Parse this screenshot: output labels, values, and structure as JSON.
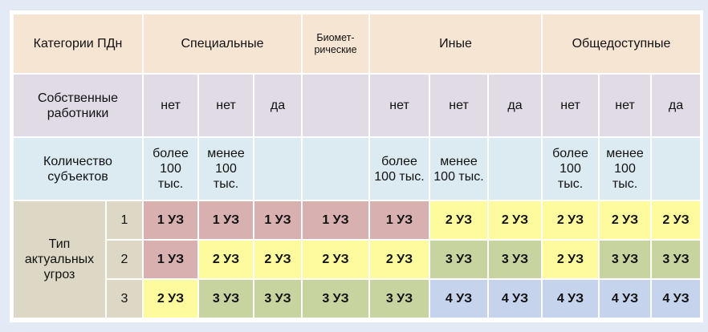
{
  "header": {
    "label": "Категории ПДн",
    "groups": [
      "Специальные",
      "Биомет-\nрические",
      "Иные",
      "Общедоступные"
    ]
  },
  "own_employees": {
    "label": "Собственные работники",
    "values": [
      "нет",
      "нет",
      "да",
      "",
      "нет",
      "нет",
      "да",
      "нет",
      "нет",
      "да"
    ]
  },
  "subjects_count": {
    "label": "Количество субъектов",
    "values": [
      "более 100 тыс.",
      "менее 100 тыс.",
      "",
      "",
      "более 100 тыс.",
      "менее 100 тыс.",
      "",
      "более 100 тыс.",
      "менее 100 тыс.",
      ""
    ]
  },
  "threats": {
    "label": "Тип актуальных угроз",
    "rows": [
      {
        "type": "1",
        "values": [
          "1 УЗ",
          "1 УЗ",
          "1 УЗ",
          "1 УЗ",
          "1 УЗ",
          "2 УЗ",
          "2 УЗ",
          "2 УЗ",
          "2 УЗ",
          "2 УЗ"
        ]
      },
      {
        "type": "2",
        "values": [
          "1 УЗ",
          "2 УЗ",
          "2 УЗ",
          "2 УЗ",
          "2 УЗ",
          "3 УЗ",
          "3 УЗ",
          "2 УЗ",
          "3 УЗ",
          "3 УЗ"
        ]
      },
      {
        "type": "3",
        "values": [
          "2 УЗ",
          "3 УЗ",
          "3 УЗ",
          "3 УЗ",
          "3 УЗ",
          "4 УЗ",
          "4 УЗ",
          "4 УЗ",
          "4 УЗ",
          "4 УЗ"
        ]
      }
    ]
  },
  "level_colors": {
    "1": "#d8b0b0",
    "2": "#fdfb9d",
    "3": "#c8d4a0",
    "4": "#c6d3ec"
  }
}
